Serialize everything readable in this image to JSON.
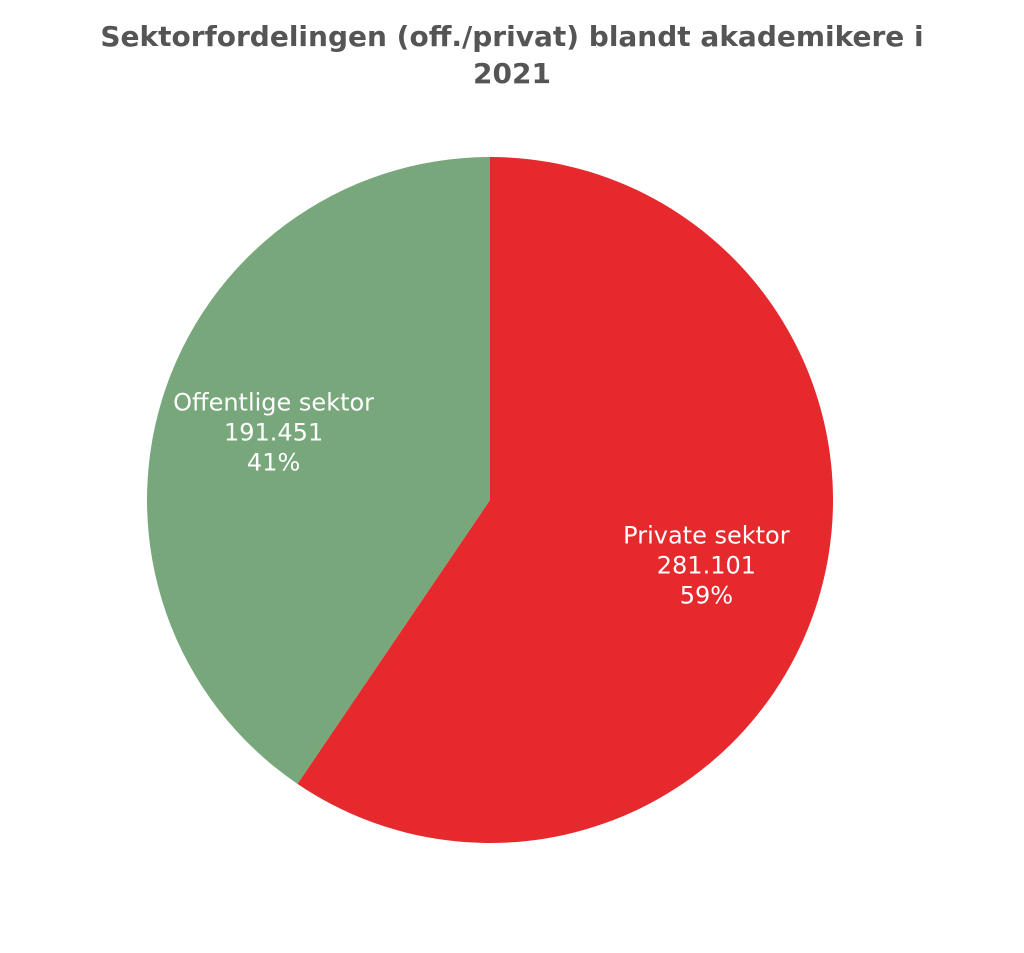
{
  "chart_data": {
    "type": "pie",
    "title": "Sektorfordelingen (off./privat) blandt akademikere i 2021",
    "slices": [
      {
        "name": "Private sektor",
        "value": 281101,
        "value_label": "281.101",
        "percent_label": "59%",
        "color": "#e5292d"
      },
      {
        "name": "Offentlige sektor",
        "value": 191451,
        "value_label": "191.451",
        "percent_label": "41%",
        "color": "#78a77c"
      }
    ],
    "start_angle": "12 o'clock",
    "direction": "clockwise",
    "legend": "none",
    "labels": "inside slices"
  }
}
